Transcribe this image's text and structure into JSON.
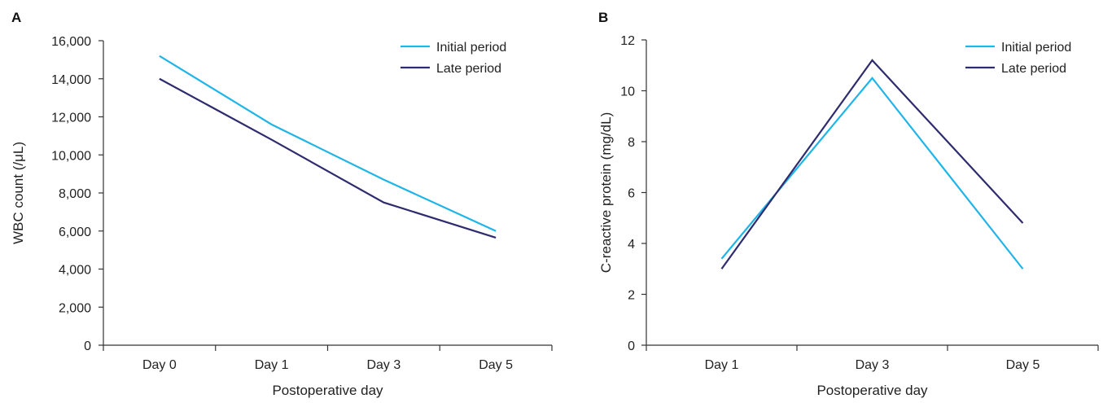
{
  "chart_data": [
    {
      "type": "line",
      "panel_label": "A",
      "title": "",
      "xlabel": "Postoperative day",
      "ylabel": "WBC count (/μL)",
      "categories": [
        "Day 0",
        "Day 1",
        "Day 3",
        "Day 5"
      ],
      "ylim": [
        0,
        16000
      ],
      "yticks": [
        0,
        2000,
        4000,
        6000,
        8000,
        10000,
        12000,
        14000,
        16000
      ],
      "ytick_labels": [
        "0",
        "2,000",
        "4,000",
        "6,000",
        "8,000",
        "10,000",
        "12,000",
        "14,000",
        "16,000"
      ],
      "legend_position": "top-right",
      "grid": false,
      "series": [
        {
          "name": "Initial period",
          "color": "#1fb5e8",
          "values": [
            15200,
            11600,
            8700,
            6000
          ]
        },
        {
          "name": "Late period",
          "color": "#2e2c6e",
          "values": [
            14000,
            10800,
            7500,
            5650
          ]
        }
      ]
    },
    {
      "type": "line",
      "panel_label": "B",
      "title": "",
      "xlabel": "Postoperative day",
      "ylabel": "C-reactive protein (mg/dL)",
      "categories": [
        "Day 1",
        "Day 3",
        "Day 5"
      ],
      "ylim": [
        0,
        12
      ],
      "yticks": [
        0,
        2,
        4,
        6,
        8,
        10,
        12
      ],
      "ytick_labels": [
        "0",
        "2",
        "4",
        "6",
        "8",
        "10",
        "12"
      ],
      "legend_position": "top-right",
      "grid": false,
      "series": [
        {
          "name": "Initial period",
          "color": "#1fb5e8",
          "values": [
            3.4,
            10.5,
            3.0
          ]
        },
        {
          "name": "Late period",
          "color": "#2e2c6e",
          "values": [
            3.0,
            11.2,
            4.8
          ]
        }
      ]
    }
  ]
}
